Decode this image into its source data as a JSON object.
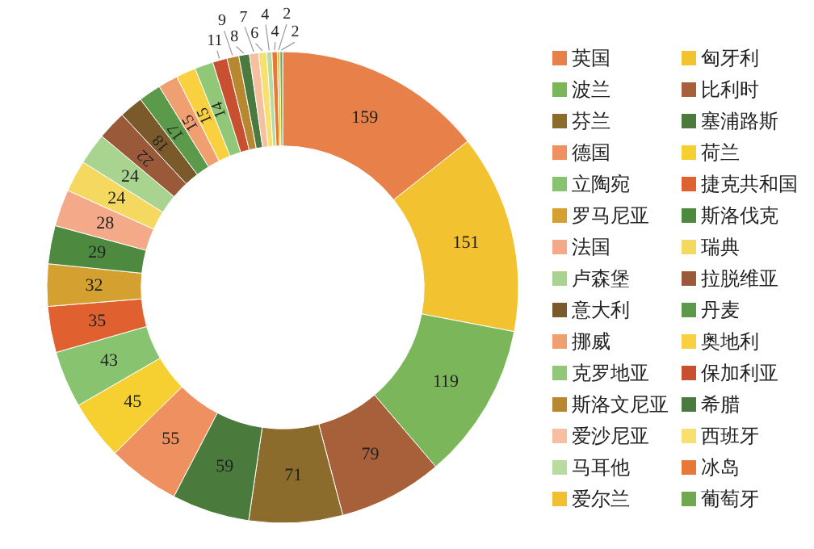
{
  "chart_data": {
    "type": "donut",
    "categories": [
      "英国",
      "匈牙利",
      "波兰",
      "比利时",
      "芬兰",
      "塞浦路斯",
      "德国",
      "荷兰",
      "立陶宛",
      "捷克共和国",
      "罗马尼亚",
      "斯洛伐克",
      "法国",
      "瑞典",
      "卢森堡",
      "拉脱维亚",
      "意大利",
      "丹麦",
      "挪威",
      "奥地利",
      "克罗地亚",
      "保加利亚",
      "斯洛文尼亚",
      "希腊",
      "爱沙尼亚",
      "西班牙",
      "马耳他",
      "冰岛",
      "爱尔兰",
      "葡萄牙"
    ],
    "values": [
      159,
      151,
      119,
      79,
      71,
      59,
      55,
      45,
      43,
      35,
      32,
      29,
      28,
      24,
      24,
      22,
      18,
      17,
      15,
      15,
      14,
      11,
      9,
      8,
      7,
      6,
      4,
      4,
      2,
      2
    ],
    "colors": [
      "#e8804a",
      "#f2c230",
      "#7cb65a",
      "#a8603a",
      "#8c6c2c",
      "#4a7a3c",
      "#ef9060",
      "#f5d030",
      "#88c470",
      "#e06030",
      "#d4a030",
      "#4d8a40",
      "#f4aa88",
      "#f5d860",
      "#a8d490",
      "#9a5a3a",
      "#7a5a2a",
      "#5a9a4a",
      "#f0a070",
      "#f8d040",
      "#90c878",
      "#c85030",
      "#b88830",
      "#4a7a40",
      "#f5bfa0",
      "#f8e070",
      "#b8dca0",
      "#e87838",
      "#f0c030",
      "#70a850"
    ],
    "data_labels": true,
    "legend": "right"
  }
}
